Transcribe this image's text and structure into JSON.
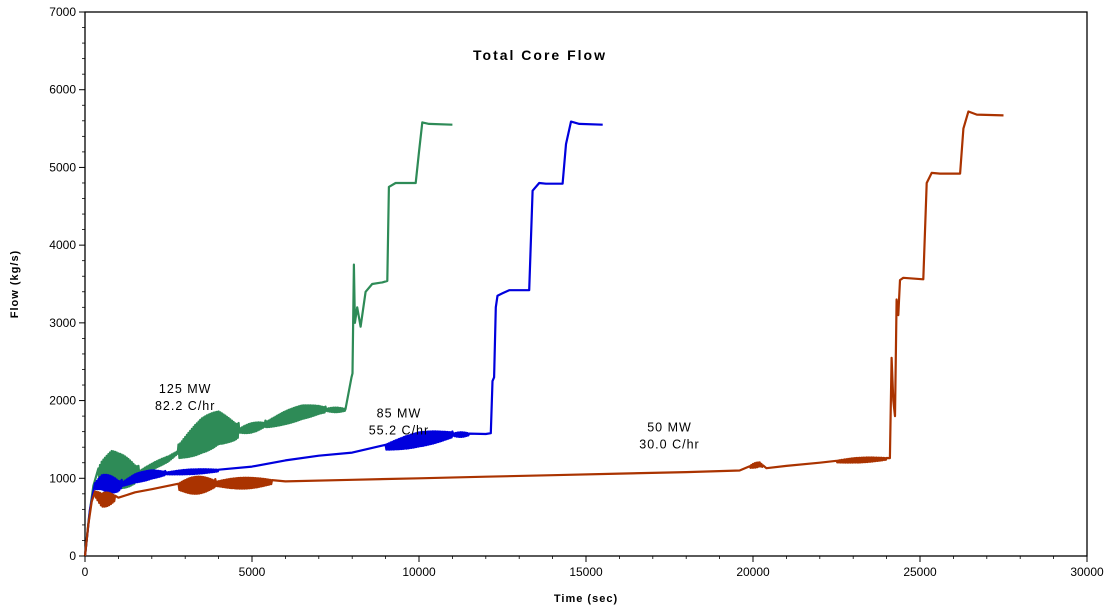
{
  "chart_data": {
    "type": "line",
    "title": "Total Core Flow",
    "xlabel": "Time (sec)",
    "ylabel": "Flow (kg/s)",
    "xlim": [
      0,
      30000
    ],
    "ylim": [
      0,
      7000
    ],
    "xticks": [
      "0",
      "5000",
      "10000",
      "15000",
      "20000",
      "25000",
      "30000"
    ],
    "yticks": [
      "0",
      "1000",
      "2000",
      "3000",
      "4000",
      "5000",
      "6000",
      "7000"
    ],
    "grid": false,
    "annotations": [
      {
        "lines": [
          "125 MW",
          "82.2 C/hr"
        ],
        "x": 3000,
        "y": 2100
      },
      {
        "lines": [
          "85 MW",
          "55.2 C/hr"
        ],
        "x": 9400,
        "y": 1780
      },
      {
        "lines": [
          "50 MW",
          "30.0 C/hr"
        ],
        "x": 17500,
        "y": 1600
      }
    ],
    "series": [
      {
        "name": "125 MW",
        "color": "#2e8b57",
        "noise": [
          [
            400,
            1600,
            220
          ],
          [
            1600,
            2800,
            40
          ],
          [
            2800,
            4600,
            230
          ],
          [
            4600,
            5400,
            60
          ],
          [
            5400,
            7200,
            90
          ],
          [
            7200,
            7800,
            30
          ]
        ],
        "points": [
          [
            0,
            0
          ],
          [
            120,
            500
          ],
          [
            250,
            900
          ],
          [
            400,
            1050
          ],
          [
            500,
            1100
          ],
          [
            800,
            1150
          ],
          [
            1000,
            1100
          ],
          [
            1500,
            1050
          ],
          [
            2000,
            1150
          ],
          [
            2500,
            1250
          ],
          [
            3000,
            1400
          ],
          [
            3500,
            1550
          ],
          [
            4000,
            1650
          ],
          [
            4500,
            1600
          ],
          [
            5000,
            1650
          ],
          [
            5500,
            1700
          ],
          [
            6000,
            1780
          ],
          [
            6500,
            1850
          ],
          [
            7000,
            1880
          ],
          [
            7800,
            1880
          ],
          [
            7980,
            2300
          ],
          [
            8010,
            2350
          ],
          [
            8050,
            3750
          ],
          [
            8080,
            3000
          ],
          [
            8150,
            3200
          ],
          [
            8250,
            2950
          ],
          [
            8400,
            3400
          ],
          [
            8600,
            3500
          ],
          [
            8900,
            3520
          ],
          [
            9050,
            3540
          ],
          [
            9100,
            4750
          ],
          [
            9300,
            4800
          ],
          [
            9900,
            4800
          ],
          [
            10000,
            5200
          ],
          [
            10100,
            5580
          ],
          [
            10300,
            5560
          ],
          [
            11000,
            5550
          ]
        ]
      },
      {
        "name": "85 MW",
        "color": "#0000dd",
        "noise": [
          [
            300,
            1100,
            110
          ],
          [
            1100,
            2400,
            60
          ],
          [
            2400,
            4000,
            30
          ],
          [
            9000,
            11000,
            90
          ],
          [
            11000,
            11500,
            30
          ]
        ],
        "points": [
          [
            0,
            0
          ],
          [
            150,
            600
          ],
          [
            300,
            900
          ],
          [
            500,
            950
          ],
          [
            1000,
            900
          ],
          [
            1500,
            1000
          ],
          [
            2000,
            1050
          ],
          [
            3000,
            1080
          ],
          [
            4000,
            1100
          ],
          [
            5000,
            1150
          ],
          [
            6000,
            1230
          ],
          [
            7000,
            1290
          ],
          [
            8000,
            1330
          ],
          [
            9000,
            1400
          ],
          [
            10000,
            1500
          ],
          [
            11000,
            1560
          ],
          [
            12000,
            1570
          ],
          [
            12150,
            1580
          ],
          [
            12200,
            2250
          ],
          [
            12250,
            2300
          ],
          [
            12300,
            3200
          ],
          [
            12350,
            3350
          ],
          [
            12500,
            3380
          ],
          [
            12700,
            3420
          ],
          [
            13300,
            3420
          ],
          [
            13400,
            4700
          ],
          [
            13600,
            4800
          ],
          [
            13800,
            4790
          ],
          [
            14300,
            4790
          ],
          [
            14400,
            5300
          ],
          [
            14550,
            5590
          ],
          [
            14800,
            5560
          ],
          [
            15500,
            5550
          ]
        ]
      },
      {
        "name": "50 MW",
        "color": "#aa3300",
        "noise": [
          [
            300,
            900,
            90
          ],
          [
            2800,
            3900,
            110
          ],
          [
            3900,
            5600,
            70
          ],
          [
            19900,
            20300,
            30
          ],
          [
            22500,
            24000,
            30
          ]
        ],
        "points": [
          [
            0,
            0
          ],
          [
            100,
            400
          ],
          [
            200,
            700
          ],
          [
            300,
            800
          ],
          [
            500,
            720
          ],
          [
            1000,
            750
          ],
          [
            1500,
            820
          ],
          [
            2000,
            860
          ],
          [
            3000,
            900
          ],
          [
            4000,
            930
          ],
          [
            5000,
            940
          ],
          [
            6000,
            960
          ],
          [
            8000,
            980
          ],
          [
            10000,
            1000
          ],
          [
            12000,
            1020
          ],
          [
            14000,
            1040
          ],
          [
            16000,
            1060
          ],
          [
            18000,
            1080
          ],
          [
            19600,
            1100
          ],
          [
            20000,
            1160
          ],
          [
            20200,
            1180
          ],
          [
            20400,
            1130
          ],
          [
            21000,
            1160
          ],
          [
            22000,
            1200
          ],
          [
            23000,
            1230
          ],
          [
            24000,
            1250
          ],
          [
            24100,
            1260
          ],
          [
            24150,
            2550
          ],
          [
            24200,
            2000
          ],
          [
            24250,
            1800
          ],
          [
            24300,
            3300
          ],
          [
            24350,
            3100
          ],
          [
            24400,
            3550
          ],
          [
            24500,
            3580
          ],
          [
            25100,
            3560
          ],
          [
            25200,
            4800
          ],
          [
            25350,
            4930
          ],
          [
            25600,
            4920
          ],
          [
            26200,
            4920
          ],
          [
            26300,
            5500
          ],
          [
            26450,
            5720
          ],
          [
            26700,
            5680
          ],
          [
            27500,
            5670
          ]
        ]
      }
    ]
  }
}
